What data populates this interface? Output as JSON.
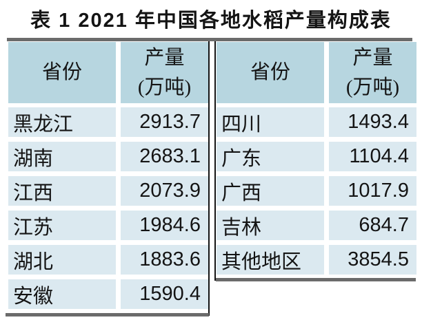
{
  "page": {
    "title": "表 1 2021 年中国各地水稻产量构成表"
  },
  "colors": {
    "page_bg": "#ffffff",
    "text": "#141414",
    "header_bg": "#b7d6e0",
    "row_bg": "#dbe9f0",
    "rule_gray": "#6b6b6b",
    "line_black": "#141414"
  },
  "tables": {
    "left": {
      "header": {
        "province": "省份",
        "yield_line1": "产量",
        "yield_line2": "(万吨)"
      },
      "rows": [
        {
          "province": "黑龙江",
          "yield": "2913.7"
        },
        {
          "province": "湖南",
          "yield": "2683.1"
        },
        {
          "province": "江西",
          "yield": "2073.9"
        },
        {
          "province": "江苏",
          "yield": "1984.6"
        },
        {
          "province": "湖北",
          "yield": "1883.6"
        },
        {
          "province": "安徽",
          "yield": "1590.4"
        }
      ]
    },
    "right": {
      "header": {
        "province": "省份",
        "yield_line1": "产量",
        "yield_line2": "(万吨)"
      },
      "rows": [
        {
          "province": "四川",
          "yield": "1493.4"
        },
        {
          "province": "广东",
          "yield": "1104.4"
        },
        {
          "province": "广西",
          "yield": "1017.9"
        },
        {
          "province": "吉林",
          "yield": "684.7"
        },
        {
          "province": "其他地区",
          "yield": "3854.5"
        }
      ]
    }
  }
}
